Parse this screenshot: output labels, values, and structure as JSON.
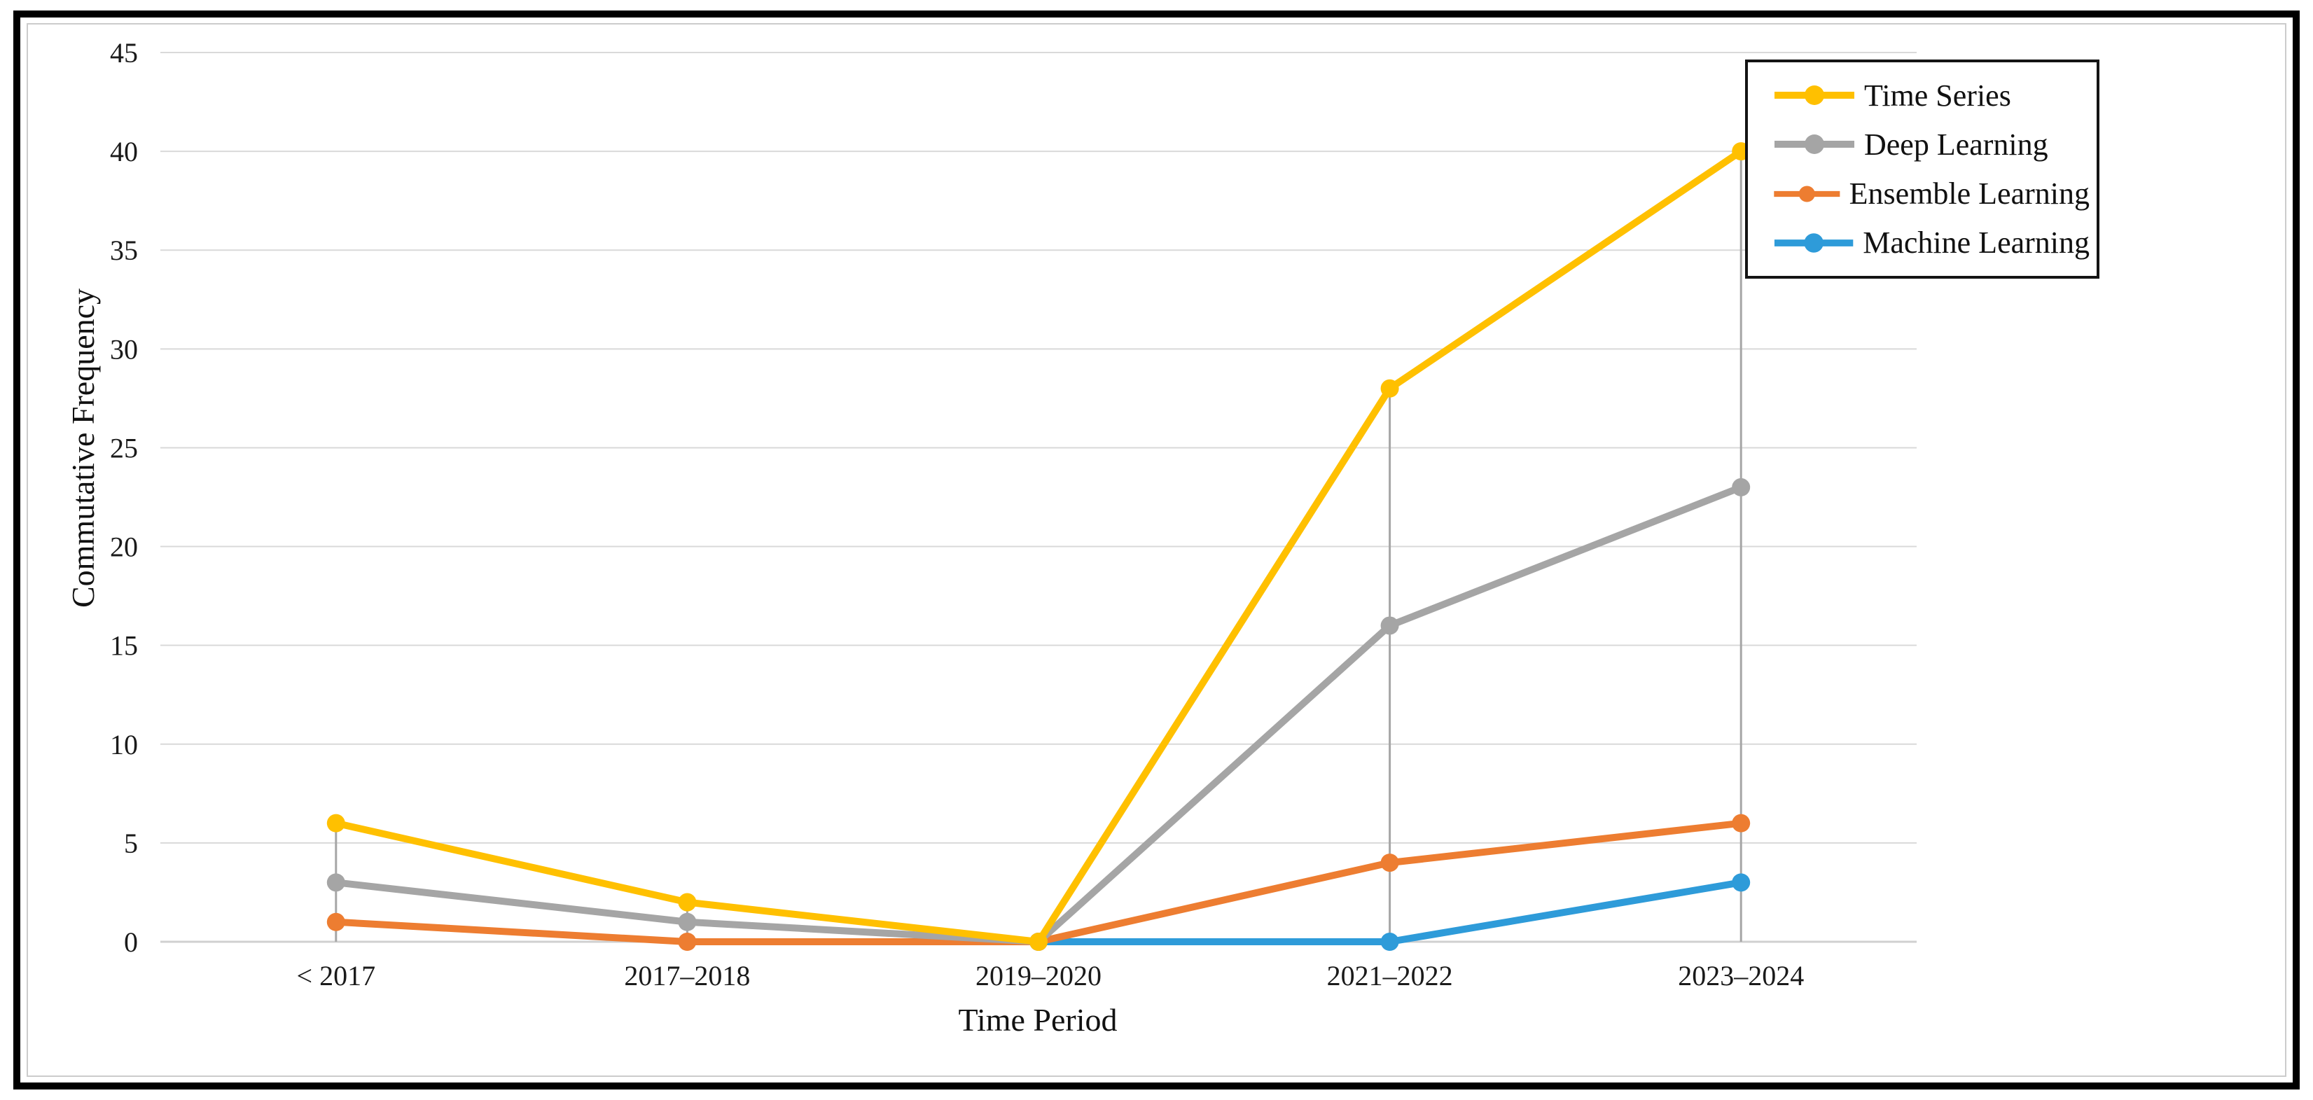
{
  "chart_data": {
    "type": "line",
    "title": "",
    "xlabel": "Time Period",
    "ylabel": "Commutative Frequency",
    "categories": [
      "< 2017",
      "2017–2018",
      "2019–2020",
      "2021–2022",
      "2023–2024"
    ],
    "series": [
      {
        "name": "Time Series",
        "color": "#FFC000",
        "values": [
          6,
          2,
          0,
          28,
          40
        ]
      },
      {
        "name": "Deep Learning",
        "color": "#A5A5A5",
        "values": [
          3,
          1,
          0,
          16,
          23
        ]
      },
      {
        "name": "Ensemble Learning",
        "color": "#ED7D31",
        "values": [
          1,
          0,
          0,
          4,
          6
        ]
      },
      {
        "name": "Machine Learning",
        "color": "#2E9BD9",
        "values": [
          null,
          null,
          0,
          0,
          3
        ]
      }
    ],
    "ylim": [
      0,
      45
    ],
    "y_ticks": [
      0,
      5,
      10,
      15,
      20,
      25,
      30,
      35,
      40,
      45
    ],
    "grid": "horizontal",
    "drop_lines": true,
    "legend_position": "top-right",
    "style": {
      "grid_color": "#D9D9D9",
      "axis_line_color": "#D0D0D0",
      "drop_line_color": "#A6A6A6",
      "text_color": "#1a1a1a",
      "legend_border_color": "#141414",
      "frame_border_color": "#000000",
      "background": "#FFFFFF"
    }
  }
}
